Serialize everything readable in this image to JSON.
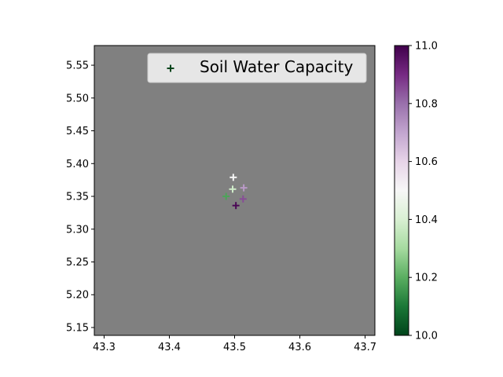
{
  "chart_data": {
    "type": "scatter",
    "title": "",
    "xlabel": "",
    "ylabel": "",
    "xlim": [
      43.285,
      43.715
    ],
    "ylim": [
      5.138,
      5.58
    ],
    "xticks": [
      43.3,
      43.4,
      43.5,
      43.6,
      43.7
    ],
    "xtick_labels": [
      "43.3",
      "43.4",
      "43.5",
      "43.6",
      "43.7"
    ],
    "yticks": [
      5.15,
      5.2,
      5.25,
      5.3,
      5.35,
      5.4,
      5.45,
      5.5,
      5.55
    ],
    "ytick_labels": [
      "5.15",
      "5.20",
      "5.25",
      "5.30",
      "5.35",
      "5.40",
      "5.45",
      "5.50",
      "5.55"
    ],
    "background_color": "#808080",
    "grid": false,
    "legend": {
      "label": "Soil Water Capacity",
      "placement": "top-right",
      "marker_color": "#00441b"
    },
    "colorbar": {
      "cmap": "PRGn",
      "vmin": 10.0,
      "vmax": 11.0,
      "ticks": [
        10.0,
        10.2,
        10.4,
        10.6,
        10.8,
        11.0
      ],
      "tick_labels": [
        "10.0",
        "10.2",
        "10.4",
        "10.6",
        "10.8",
        "11.0"
      ]
    },
    "marker": "+",
    "series": [
      {
        "name": "Soil Water Capacity",
        "points": [
          {
            "x": 43.498,
            "y": 5.379,
            "c": 10.5
          },
          {
            "x": 43.497,
            "y": 5.361,
            "c": 10.38
          },
          {
            "x": 43.514,
            "y": 5.363,
            "c": 10.72
          },
          {
            "x": 43.487,
            "y": 5.35,
            "c": 10.18
          },
          {
            "x": 43.513,
            "y": 5.346,
            "c": 10.85
          },
          {
            "x": 43.502,
            "y": 5.336,
            "c": 10.98
          }
        ]
      }
    ]
  }
}
